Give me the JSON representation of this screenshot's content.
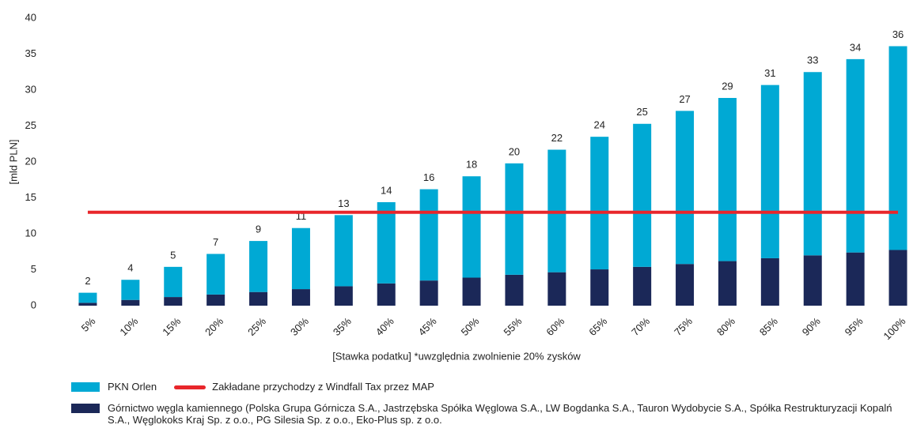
{
  "chart_data": {
    "type": "bar",
    "y_label": "[mld PLN]",
    "x_label": "[Stawka podatku] *uwzględnia zwolnienie 20% zysków",
    "categories": [
      "5%",
      "10%",
      "15%",
      "20%",
      "25%",
      "30%",
      "35%",
      "40%",
      "45%",
      "50%",
      "55%",
      "60%",
      "65%",
      "70%",
      "75%",
      "80%",
      "85%",
      "90%",
      "95%",
      "100%"
    ],
    "series": [
      {
        "name": "Górnictwo węgla kamiennego (Polska Grupa Górnicza S.A., Jastrzębska Spółka Węglowa S.A., LW Bogdanka S.A., Tauron Wydobycie S.A., Spółka Restrukturyzacji Kopalń S.A., Węglokoks Kraj Sp. z o.o., PG Silesia Sp. z o.o., Eko-Plus sp. z o.o.",
        "color": "#1b2858",
        "values": [
          0.4,
          0.8,
          1.2,
          1.55,
          1.9,
          2.3,
          2.7,
          3.1,
          3.5,
          3.9,
          4.3,
          4.65,
          5.05,
          5.4,
          5.8,
          6.2,
          6.6,
          7.0,
          7.4,
          7.75
        ]
      },
      {
        "name": "PKN Orlen",
        "color": "#00a9d4",
        "values": [
          1.4,
          2.8,
          4.2,
          5.65,
          7.1,
          8.5,
          9.9,
          11.3,
          12.7,
          14.1,
          15.5,
          17.05,
          18.45,
          19.9,
          21.3,
          22.7,
          24.1,
          25.5,
          26.9,
          28.35
        ]
      },
      {
        "name": "Zakładane przychodzy z Windfall Tax przez MAP",
        "type": "line",
        "color": "#e8262b",
        "values": [
          13,
          13,
          13,
          13,
          13,
          13,
          13,
          13,
          13,
          13,
          13,
          13,
          13,
          13,
          13,
          13,
          13,
          13,
          13,
          13
        ]
      }
    ],
    "totals": [
      2,
      4,
      5,
      7,
      9,
      11,
      13,
      14,
      16,
      18,
      20,
      22,
      24,
      25,
      27,
      29,
      31,
      33,
      34,
      36
    ],
    "ylim": [
      0,
      40
    ],
    "yticks": [
      0,
      5,
      10,
      15,
      20,
      25,
      30,
      35,
      40
    ],
    "grid": false
  }
}
